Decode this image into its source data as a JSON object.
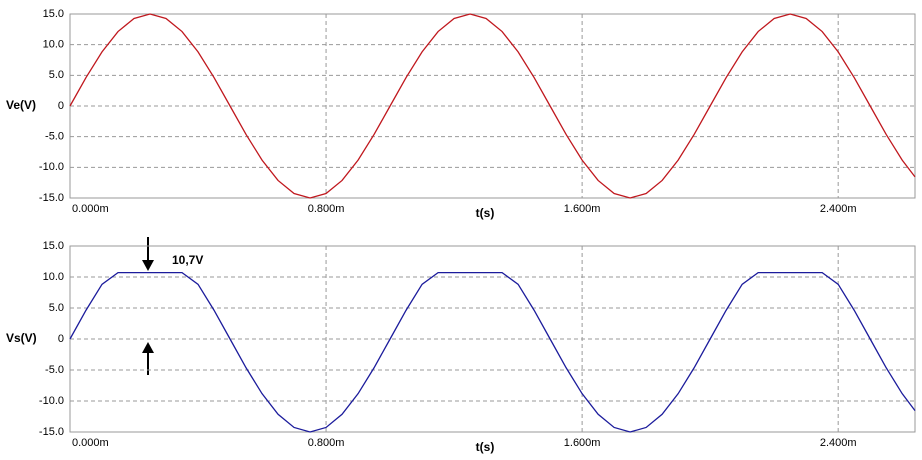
{
  "chart_data": [
    {
      "type": "line",
      "xlabel": "t(s)",
      "ylabel": "Ve(V)",
      "color": "#c0181e",
      "grid": true,
      "xlim": [
        0,
        0.00264
      ],
      "xticks": [
        {
          "value": 0,
          "label": "0.000m"
        },
        {
          "value": 0.0008,
          "label": "0.800m"
        },
        {
          "value": 0.0016,
          "label": "1.600m"
        },
        {
          "value": 0.0024,
          "label": "2.400m"
        }
      ],
      "ylim": [
        -15,
        15
      ],
      "yticks": [
        {
          "value": 15,
          "label": "15.0"
        },
        {
          "value": 10,
          "label": "10.0"
        },
        {
          "value": 5,
          "label": "5.0"
        },
        0,
        {
          "value": -5,
          "label": "-5.0"
        },
        {
          "value": -10,
          "label": "-10.0"
        },
        {
          "value": -15,
          "label": "-15.0"
        }
      ],
      "x": [
        0,
        5e-05,
        0.0001,
        0.00015,
        0.0002,
        0.00025,
        0.0003,
        0.00035,
        0.0004,
        0.00045,
        0.0005,
        0.00055,
        0.0006,
        0.00065,
        0.0007,
        0.00075,
        0.0008,
        0.00085,
        0.0009,
        0.00095,
        0.001,
        0.00105,
        0.0011,
        0.00115,
        0.0012,
        0.00125,
        0.0013,
        0.00135,
        0.0014,
        0.00145,
        0.0015,
        0.00155,
        0.0016,
        0.00165,
        0.0017,
        0.00175,
        0.0018,
        0.00185,
        0.0019,
        0.00195,
        0.002,
        0.00205,
        0.0021,
        0.00215,
        0.0022,
        0.00225,
        0.0023,
        0.00235,
        0.0024,
        0.00245,
        0.0025,
        0.00255,
        0.0026,
        0.00264
      ],
      "values": [
        0,
        4.64,
        8.82,
        12.14,
        14.27,
        15,
        14.27,
        12.14,
        8.82,
        4.64,
        0,
        -4.64,
        -8.82,
        -12.14,
        -14.27,
        -15,
        -14.27,
        -12.14,
        -8.82,
        -4.64,
        0,
        4.64,
        8.82,
        12.14,
        14.27,
        15,
        14.27,
        12.14,
        8.82,
        4.64,
        0,
        -4.64,
        -8.82,
        -12.14,
        -14.27,
        -15,
        -14.27,
        -12.14,
        -8.82,
        -4.64,
        0,
        4.64,
        8.82,
        12.14,
        14.27,
        15,
        14.27,
        12.14,
        8.82,
        4.64,
        0,
        -4.64,
        -8.82,
        -11.56
      ]
    },
    {
      "type": "line",
      "xlabel": "t(s)",
      "ylabel": "Vs(V)",
      "color": "#1c1c9c",
      "grid": true,
      "annotation": "10,7V",
      "xlim": [
        0,
        0.00264
      ],
      "xticks": [
        {
          "value": 0,
          "label": "0.000m"
        },
        {
          "value": 0.0008,
          "label": "0.800m"
        },
        {
          "value": 0.0016,
          "label": "1.600m"
        },
        {
          "value": 0.0024,
          "label": "2.400m"
        }
      ],
      "ylim": [
        -15,
        15
      ],
      "yticks": [
        {
          "value": 15,
          "label": "15.0"
        },
        {
          "value": 10,
          "label": "10.0"
        },
        {
          "value": 5,
          "label": "5.0"
        },
        0,
        {
          "value": -5,
          "label": "-5.0"
        },
        {
          "value": -10,
          "label": "-10.0"
        },
        {
          "value": -15,
          "label": "-15.0"
        }
      ],
      "x": [
        0,
        5e-05,
        0.0001,
        0.00015,
        0.0002,
        0.00025,
        0.0003,
        0.00035,
        0.0004,
        0.00045,
        0.0005,
        0.00055,
        0.0006,
        0.00065,
        0.0007,
        0.00075,
        0.0008,
        0.00085,
        0.0009,
        0.00095,
        0.001,
        0.00105,
        0.0011,
        0.00115,
        0.0012,
        0.00125,
        0.0013,
        0.00135,
        0.0014,
        0.00145,
        0.0015,
        0.00155,
        0.0016,
        0.00165,
        0.0017,
        0.00175,
        0.0018,
        0.00185,
        0.0019,
        0.00195,
        0.002,
        0.00205,
        0.0021,
        0.00215,
        0.0022,
        0.00225,
        0.0023,
        0.00235,
        0.0024,
        0.00245,
        0.0025,
        0.00255,
        0.0026,
        0.00264
      ],
      "values": [
        0,
        4.64,
        8.82,
        10.7,
        10.7,
        10.7,
        10.7,
        10.7,
        8.82,
        4.64,
        0,
        -4.64,
        -8.82,
        -12.14,
        -14.27,
        -15,
        -14.27,
        -12.14,
        -8.82,
        -4.64,
        0,
        4.64,
        8.82,
        10.7,
        10.7,
        10.7,
        10.7,
        10.7,
        8.82,
        4.64,
        0,
        -4.64,
        -8.82,
        -12.14,
        -14.27,
        -15,
        -14.27,
        -12.14,
        -8.82,
        -4.64,
        0,
        4.64,
        8.82,
        10.7,
        10.7,
        10.7,
        10.7,
        10.7,
        8.82,
        4.64,
        0,
        -4.64,
        -8.82,
        -11.56
      ]
    }
  ]
}
